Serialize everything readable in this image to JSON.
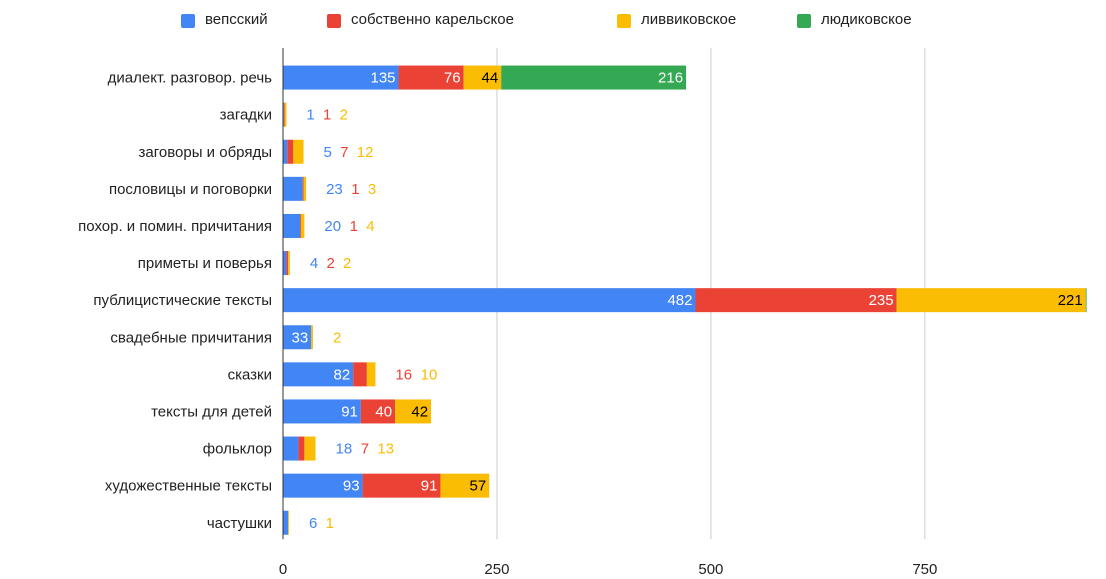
{
  "chart_data": {
    "type": "bar",
    "orientation": "horizontal",
    "stacked": true,
    "categories": [
      "диалект. разговор. речь",
      "загадки",
      "заговоры и обряды",
      "пословицы и поговорки",
      "похор. и помин. причитания",
      "приметы и поверья",
      "публицистические тексты",
      "свадебные причитания",
      "сказки",
      "тексты для детей",
      "фольклор",
      "художественные тексты",
      "частушки"
    ],
    "series": [
      {
        "name": "вепсский",
        "color": "#4285F4",
        "values": [
          135,
          1,
          5,
          23,
          20,
          4,
          482,
          33,
          82,
          91,
          18,
          93,
          6
        ]
      },
      {
        "name": "собственно карельское",
        "color": "#EA4335",
        "values": [
          76,
          1,
          7,
          1,
          1,
          2,
          235,
          0,
          16,
          40,
          7,
          91,
          0
        ]
      },
      {
        "name": "ливвиковское",
        "color": "#FBBC04",
        "values": [
          44,
          2,
          12,
          3,
          4,
          2,
          221,
          2,
          10,
          42,
          13,
          57,
          1
        ]
      },
      {
        "name": "людиковское",
        "color": "#34A853",
        "values": [
          216,
          0,
          0,
          0,
          0,
          0,
          1,
          0,
          0,
          0,
          0,
          0,
          0
        ]
      }
    ],
    "xlim": [
      0,
      950
    ],
    "xticks": [
      0,
      250,
      500,
      750
    ],
    "xlabel": "",
    "ylabel": "",
    "grid": "vertical",
    "legend": "top-center"
  }
}
